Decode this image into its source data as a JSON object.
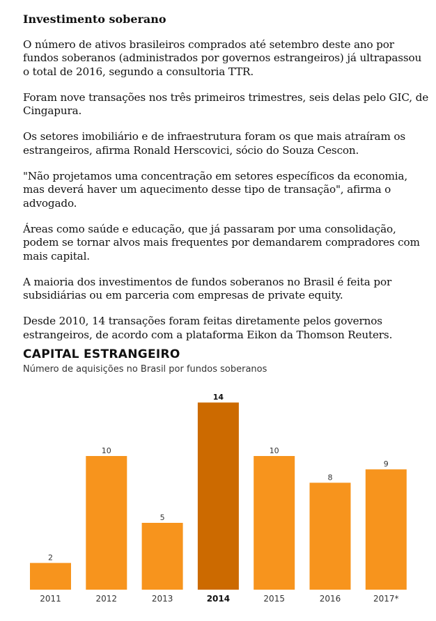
{
  "article": {
    "headline": "Investimento soberano",
    "paragraphs": [
      "O número de ativos brasileiros comprados até setembro deste ano por fundos soberanos (administrados por governos estrangeiros) já ultrapassou o total de 2016, segundo a consultoria TTR.",
      "Foram nove transações nos três primeiros trimestres, seis delas pelo GIC, de Cingapura.",
      "Os setores imobiliário e de infraestrutura foram os que mais atraíram os estrangeiros, afirma Ronald Herscovici, sócio do Souza Cescon.",
      "\"Não projetamos uma concentração em setores específicos da economia, mas deverá haver um aquecimento desse tipo de transação\", afirma o advogado.",
      "Áreas como saúde e educação, que já passaram por uma consolidação, podem se tornar alvos mais frequentes por demandarem compradores com mais capital.",
      "A maioria dos investimentos de fundos soberanos no Brasil é feita por subsidiárias ou em parceria com empresas de private equity.",
      "Desde 2010, 14 transações foram feitas diretamente pelos governos estrangeiros, de acordo com a plataforma Eikon da Thomson Reuters."
    ]
  },
  "chart_data": {
    "type": "bar",
    "title": "CAPITAL ESTRANGEIRO",
    "subtitle": "Número de aquisições no Brasil por fundos soberanos",
    "categories": [
      "2011",
      "2012",
      "2013",
      "2014",
      "2015",
      "2016",
      "2017*"
    ],
    "values": [
      2,
      10,
      5,
      14,
      10,
      8,
      9
    ],
    "highlight_index": 3,
    "ylim": [
      0,
      14
    ],
    "grid": false,
    "colors": {
      "bar": "#F7941D",
      "highlight": "#CC6A00"
    }
  }
}
